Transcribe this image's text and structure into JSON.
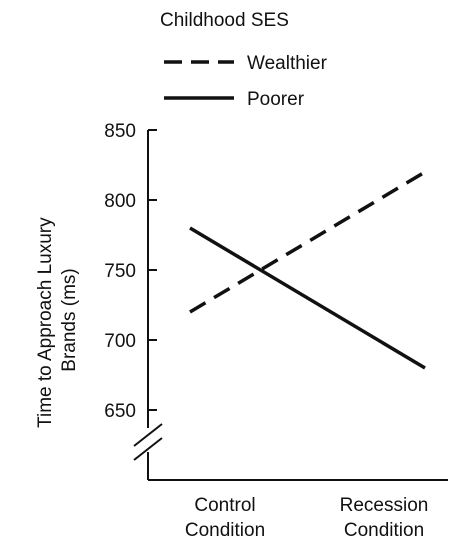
{
  "chart_data": {
    "type": "line",
    "legend": {
      "title": "Childhood SES",
      "placement": "top-left"
    },
    "categories": [
      "Control Condition",
      "Recession Condition"
    ],
    "x_tick_labels": [
      [
        "Control",
        "Condition"
      ],
      [
        "Recession",
        "Condition"
      ]
    ],
    "ylabel": [
      "Time to Approach Luxury",
      "Brands (ms)"
    ],
    "yticks": [
      650,
      700,
      750,
      800,
      850
    ],
    "ylim": [
      650,
      850
    ],
    "y_axis_break": true,
    "grid": false,
    "series": [
      {
        "name": "Wealthier",
        "values": [
          720,
          820
        ],
        "line_style": "dashed",
        "color": "#111111"
      },
      {
        "name": "Poorer",
        "values": [
          780,
          680
        ],
        "line_style": "solid",
        "color": "#111111"
      }
    ]
  }
}
